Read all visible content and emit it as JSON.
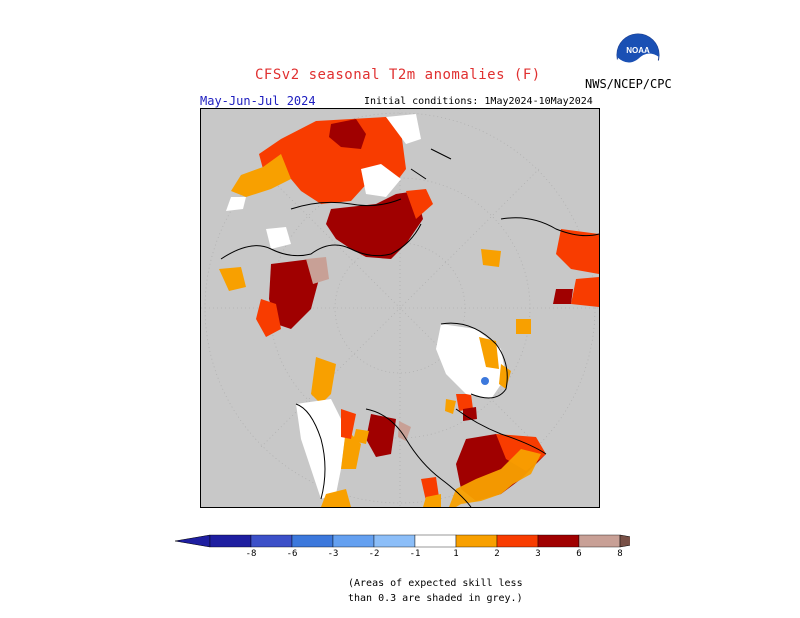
{
  "header": {
    "title": "CFSv2 seasonal T2m anomalies (F)",
    "season": "May-Jun-Jul 2024",
    "initial_conditions": "Initial conditions: 1May2024-10May2024",
    "agency": "NWS/NCEP/CPC",
    "logo_text": "NOAA"
  },
  "map": {
    "projection": "north-polar-stereographic",
    "land_outline_color": "#000000",
    "grey_mask_color": "#c8c8c8",
    "regions": [
      {
        "name": "alaska",
        "level": "+2 to +3"
      },
      {
        "name": "western-canada",
        "level": "+3 to +6"
      },
      {
        "name": "eastern-canada",
        "level": "+3 to +6"
      },
      {
        "name": "greenland",
        "level": "+1 to +3"
      },
      {
        "name": "northern-europe",
        "level": "+2 to +6"
      },
      {
        "name": "central-asia",
        "level": "+1"
      },
      {
        "name": "siberia",
        "level": "+2 to +3"
      }
    ]
  },
  "legend": {
    "labels": [
      "-8",
      "-6",
      "-3",
      "-2",
      "-1",
      "1",
      "2",
      "3",
      "6",
      "8"
    ],
    "colors": [
      "#1e1ea0",
      "#3c50c8",
      "#3c78dc",
      "#64a0f0",
      "#8cbef8",
      "#ffffff",
      "#f8a000",
      "#f83c00",
      "#a00000",
      "#c8a096",
      "#785046"
    ],
    "neg_extreme_color": "#1e1ea0",
    "pos_extreme_color": "#785046"
  },
  "note": {
    "line1": "(Areas of expected skill less",
    "line2": "than 0.3 are shaded in grey.)"
  }
}
